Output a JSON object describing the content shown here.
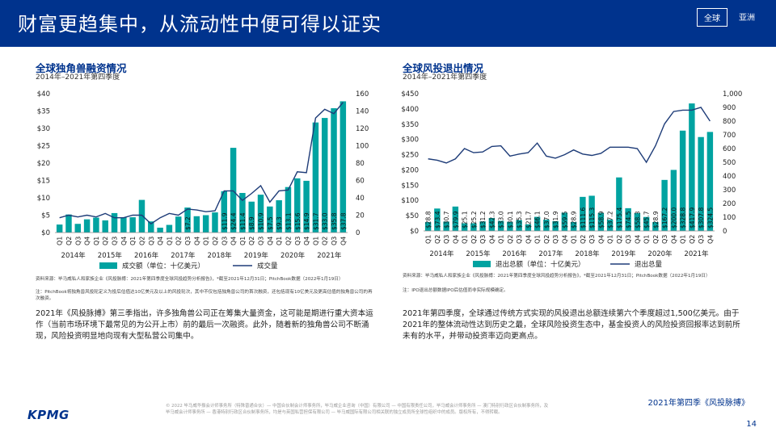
{
  "header": {
    "title": "财富更趋集中，从流动性中便可得以证实",
    "tabs": [
      {
        "label": "全球",
        "active": true
      },
      {
        "label": "亚洲",
        "active": false
      }
    ]
  },
  "left": {
    "title": "全球独角兽融资情况",
    "subtitle": "2014年–2021年第四季度",
    "source": "资料来源：毕马威私人和家族企业《风投脉搏：2021年第四季度全球风投趋势分析报告》，*截至2021年12月31日；PitchBook数据（2022年1月19日）",
    "note": "注：PitchBook将独角兽风投轮定义为投后估值达10亿美元及以上的风投轮次，其中不仅包括独角兽公司的首次融资，还包括现有10亿美元及更高估值的独角兽公司的再次融资。",
    "paragraph": "2021年《风投脉搏》第三季指出，许多独角兽公司正在筹集大量资金，这可能是期进行重大资本运作（当前市场环境下最常见的为公开上市）前的最后一次融资。此外，随着新的独角兽公司不断涌现，风险投资明显地向现有大型私营公司集中。"
  },
  "right": {
    "title": "全球风投退出情况",
    "subtitle": "2014年–2021年第四季度",
    "source": "资料来源：毕马威私人和家族企业《风投脉搏：2021年第四季度全球风投趋势分析报告》，*截至2021年12月31日；PitchBook数据（2022年1月19日）",
    "note": "注：IPO退出总额数据IPO后估值而非实际规模确定。",
    "paragraph": "2021年第四季度，全球通过传统方式实现的风投退出总额连续第六个季度超过1,500亿美元。由于2021年的整体流动性达到历史之最，全球风险投资生态中，基金投资人的风险投资回报率达到前所未有的水平，并带动投资率迈向更高点。"
  },
  "footer": {
    "legal": "© 2022 毕马威华振会计师事务所（特殊普通合伙）— 中国合伙制会计师事务所，毕马威企业咨询（中国）有限公司 — 中国有限责任公司，毕马威会计师事务所 — 澳门特别行政区合伙制事务所，及毕马威会计师事务所 — 香港特别行政区合伙制事务所，均是与英国私营担保有限公司 — 毕马威国际有限公司相关联的独立成员所全球性组织中的成员。版权所有，不得转载。",
    "logo": "KPMG",
    "report": "2021年第四季《风投脉搏》",
    "page": "14"
  },
  "colors": {
    "navy": "#00338d",
    "teal": "#00a3a1",
    "line": "#1e3c78"
  },
  "chart_data": [
    {
      "type": "bar",
      "title": "全球独角兽融资情况",
      "quarters": [
        "Q1",
        "Q2",
        "Q3",
        "Q4",
        "Q1",
        "Q2",
        "Q3",
        "Q4",
        "Q1",
        "Q2",
        "Q3",
        "Q4",
        "Q1",
        "Q2",
        "Q3",
        "Q4",
        "Q1",
        "Q2",
        "Q3",
        "Q4",
        "Q1",
        "Q2",
        "Q3",
        "Q4",
        "Q1",
        "Q2",
        "Q3",
        "Q4",
        "Q1",
        "Q2",
        "Q3",
        "Q4"
      ],
      "years": [
        "2014年",
        "2015年",
        "2016年",
        "2017年",
        "2018年",
        "2019年",
        "2020年",
        "2021年"
      ],
      "series": [
        {
          "name": "成交额（单位：十亿美元）",
          "kind": "bar",
          "axis": "left",
          "values": [
            2.3,
            5.2,
            2.5,
            3.8,
            4.3,
            3.5,
            5.6,
            4.4,
            4.4,
            9.4,
            3.2,
            1.4,
            2.2,
            4.6,
            7.2,
            4.7,
            5.0,
            5.8,
            11.9,
            24.4,
            11.4,
            8.9,
            10.9,
            7.5,
            9.3,
            13.1,
            15.6,
            14.9,
            31.7,
            33.0,
            35.8,
            37.8
          ],
          "labels": {
            "14": "$7.2",
            "18": "$11.9",
            "19": "$24.4",
            "20": "$11.4",
            "21": "$8.9",
            "22": "$10.9",
            "23": "$7.5",
            "24": "$9.3",
            "25": "$13.1",
            "26": "$15.6",
            "27": "$14.9",
            "28": "$31.7",
            "29": "$33.0",
            "30": "$35.8",
            "31": "$37.8"
          }
        },
        {
          "name": "成交量",
          "kind": "line",
          "axis": "right",
          "values": [
            17,
            20,
            18,
            20,
            18,
            22,
            17,
            17,
            20,
            20,
            10,
            17,
            22,
            20,
            27,
            26,
            24,
            25,
            48,
            48,
            37,
            45,
            54,
            35,
            48,
            49,
            70,
            69,
            132,
            142,
            137,
            150
          ]
        }
      ],
      "ylim_left": [
        0,
        40
      ],
      "yticks_left": [
        "$0",
        "$5",
        "$10",
        "$15",
        "$20",
        "$25",
        "$30",
        "$35",
        "$40"
      ],
      "ylim_right": [
        0,
        160
      ],
      "yticks_right": [
        "0",
        "20",
        "40",
        "60",
        "80",
        "100",
        "120",
        "140",
        "160"
      ]
    },
    {
      "type": "bar",
      "title": "全球风投退出情况",
      "quarters": [
        "Q1",
        "Q2",
        "Q3",
        "Q4",
        "Q1",
        "Q2",
        "Q3",
        "Q4",
        "Q1",
        "Q2",
        "Q3",
        "Q4",
        "Q1",
        "Q2",
        "Q3",
        "Q4",
        "Q1",
        "Q2",
        "Q3",
        "Q4",
        "Q1",
        "Q2",
        "Q3",
        "Q4",
        "Q1",
        "Q2",
        "Q3",
        "Q4",
        "Q1",
        "Q2",
        "Q3",
        "Q4"
      ],
      "years": [
        "2014年",
        "2015年",
        "2016年",
        "2017年",
        "2018年",
        "2019年",
        "2020年",
        "2021年"
      ],
      "series": [
        {
          "name": "退出总额（单位：十亿美元）",
          "kind": "bar",
          "axis": "left",
          "values": [
            28.8,
            73.4,
            30.7,
            79.9,
            25.1,
            25.2,
            31.2,
            42.3,
            33.0,
            30.1,
            35.3,
            21.7,
            46.1,
            37.0,
            31.9,
            59.5,
            28.9,
            111.6,
            115.3,
            58.9,
            37.2,
            175.4,
            74.5,
            58.3,
            45.7,
            28.9,
            167.2,
            200.0,
            328.8,
            417.9,
            307.8,
            324.5
          ],
          "labels": [
            "$28.8",
            "$73.4",
            "$30.7",
            "$79.9",
            "$25.1",
            "$25.2",
            "$31.2",
            "$42.3",
            "$33.0",
            "$30.1",
            "$35.3",
            "$21.7",
            "$46.1",
            "$37.0",
            "$31.9",
            "$59.5",
            "$28.9",
            "$111.6",
            "$115.3",
            "$58.9",
            "$37.2",
            "$175.4",
            "$74.5",
            "$58.3",
            "$45.7",
            "$28.9",
            "$167.2",
            "$200.0",
            "$328.8",
            "$417.9",
            "$307.8",
            "$324.5"
          ]
        },
        {
          "name": "退出总量",
          "kind": "line",
          "axis": "right",
          "values": [
            525,
            515,
            495,
            525,
            600,
            570,
            575,
            615,
            620,
            545,
            560,
            570,
            640,
            545,
            530,
            555,
            590,
            560,
            550,
            565,
            610,
            610,
            610,
            600,
            500,
            620,
            780,
            870,
            880,
            880,
            900,
            800
          ]
        }
      ],
      "ylim_left": [
        0,
        450
      ],
      "yticks_left": [
        "$0",
        "$50",
        "$100",
        "$150",
        "$200",
        "$250",
        "$300",
        "$350",
        "$400",
        "$450"
      ],
      "ylim_right": [
        0,
        1000
      ],
      "yticks_right": [
        "0",
        "100",
        "200",
        "300",
        "400",
        "500",
        "600",
        "700",
        "800",
        "900",
        "1,000"
      ]
    }
  ]
}
